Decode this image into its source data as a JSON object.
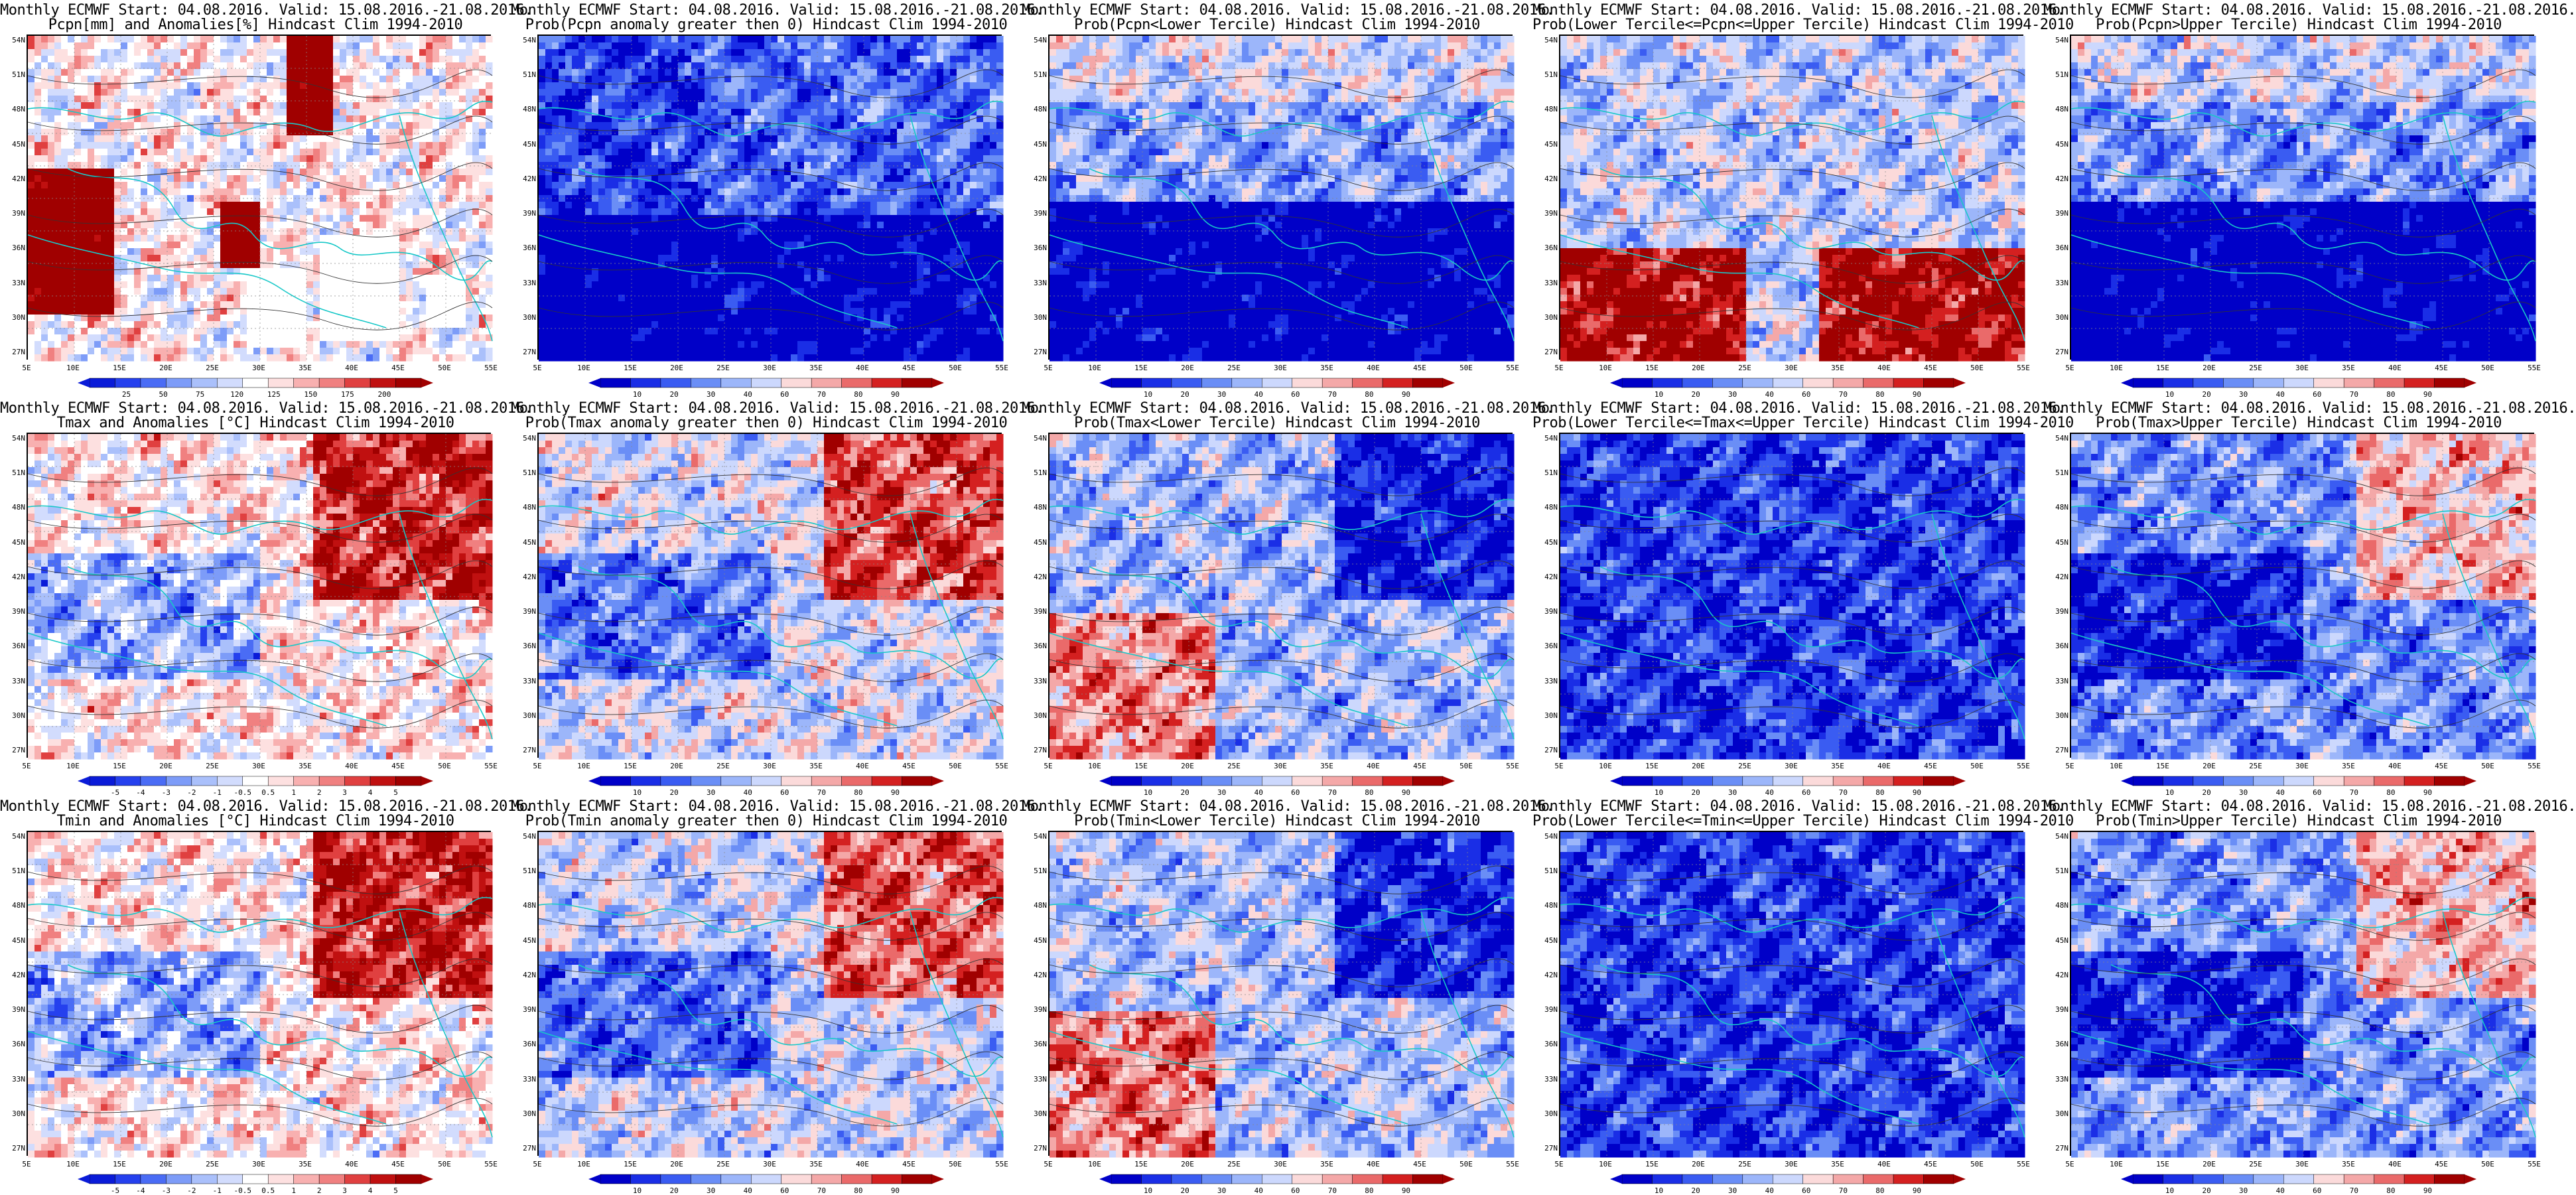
{
  "palettes": {
    "anom": [
      "#0a1bd8",
      "#2540ee",
      "#4a6cf5",
      "#7d9cf8",
      "#aac0fb",
      "#d2dcfd",
      "#ffffff",
      "#fde0e0",
      "#f8b0b0",
      "#f08080",
      "#e04040",
      "#c01010",
      "#a00000"
    ],
    "prob": [
      "#0000c8",
      "#1a2ee6",
      "#3a5cf2",
      "#6a8ef6",
      "#9cb6fa",
      "#ccd8fd",
      "#fbdada",
      "#f4a8a8",
      "#ea6a6a",
      "#d42020",
      "#a00000"
    ]
  },
  "x_ticks": [
    "5E",
    "10E",
    "15E",
    "20E",
    "25E",
    "30E",
    "35E",
    "40E",
    "45E",
    "50E",
    "55E"
  ],
  "y_ticks": [
    "54N",
    "51N",
    "48N",
    "45N",
    "42N",
    "39N",
    "36N",
    "33N",
    "30N",
    "27N"
  ],
  "panels": [
    {
      "title1": "Monthly ECMWF Start: 04.08.2016. Valid: 15.08.2016.-21.08.2016.",
      "title2": "Pcpn[mm] and Anomalies[%] Hindcast Clim 1994-2010",
      "palette": "anom",
      "colorbar": [
        "25",
        "50",
        "75",
        "120",
        "125",
        "150",
        "175",
        "200"
      ],
      "bias": 0.05,
      "style": "pcpanom",
      "seed": 11
    },
    {
      "title1": "Monthly ECMWF Start: 04.08.2016. Valid: 15.08.2016.-21.08.2016.",
      "title2": "Prob(Pcpn anomaly greater then 0) Hindcast Clim 1994-2010",
      "palette": "prob",
      "colorbar": [
        "10",
        "20",
        "30",
        "40",
        "60",
        "70",
        "80",
        "90"
      ],
      "bias": -0.55,
      "style": "south_blue",
      "seed": 12
    },
    {
      "title1": "Monthly ECMWF Start: 04.08.2016. Valid: 15.08.2016.-21.08.2016.",
      "title2": "Prob(Pcpn<Lower Tercile) Hindcast Clim 1994-2010",
      "palette": "prob",
      "colorbar": [
        "10",
        "20",
        "30",
        "40",
        "60",
        "70",
        "80",
        "90"
      ],
      "bias": -0.3,
      "style": "south_deep_blue",
      "seed": 13
    },
    {
      "title1": "Monthly ECMWF Start: 04.08.2016. Valid: 15.08.2016.-21.08.2016.",
      "title2": "Prob(Lower Tercile<=Pcpn<=Upper Tercile) Hindcast Clim 1994-2010",
      "palette": "prob",
      "colorbar": [
        "10",
        "20",
        "30",
        "40",
        "60",
        "70",
        "80",
        "90"
      ],
      "bias": -0.1,
      "style": "south_red",
      "seed": 14
    },
    {
      "title1": "Monthly ECMWF Start: 04.08.2016. Valid: 15.08.2016.-21.08.2016.",
      "title2": "Prob(Pcpn>Upper Tercile) Hindcast Clim 1994-2010",
      "palette": "prob",
      "colorbar": [
        "10",
        "20",
        "30",
        "40",
        "60",
        "70",
        "80",
        "90"
      ],
      "bias": -0.35,
      "style": "south_deep_blue",
      "seed": 15
    },
    {
      "title1": "Monthly ECMWF Start: 04.08.2016. Valid: 15.08.2016.-21.08.2016.",
      "title2": "Tmax and Anomalies [°C] Hindcast Clim 1994-2010",
      "palette": "anom",
      "colorbar": [
        "-5",
        "-4",
        "-3",
        "-2",
        "-1",
        "-0.5",
        "0.5",
        "1",
        "2",
        "3",
        "4",
        "5"
      ],
      "bias": 0.1,
      "style": "east_red",
      "seed": 21
    },
    {
      "title1": "Monthly ECMWF Start: 04.08.2016. Valid: 15.08.2016.-21.08.2016.",
      "title2": "Prob(Tmax anomaly greater then 0) Hindcast Clim 1994-2010",
      "palette": "prob",
      "colorbar": [
        "10",
        "20",
        "30",
        "40",
        "60",
        "70",
        "80",
        "90"
      ],
      "bias": 0.0,
      "style": "east_red",
      "seed": 22
    },
    {
      "title1": "Monthly ECMWF Start: 04.08.2016. Valid: 15.08.2016.-21.08.2016.",
      "title2": "Prob(Tmax<Lower Tercile) Hindcast Clim 1994-2010",
      "palette": "prob",
      "colorbar": [
        "10",
        "20",
        "30",
        "40",
        "60",
        "70",
        "80",
        "90"
      ],
      "bias": -0.2,
      "style": "mixed",
      "seed": 23
    },
    {
      "title1": "Monthly ECMWF Start: 04.08.2016. Valid: 15.08.2016.-21.08.2016.",
      "title2": "Prob(Lower Tercile<=Tmax<=Upper Tercile) Hindcast Clim 1994-2010",
      "palette": "prob",
      "colorbar": [
        "10",
        "20",
        "30",
        "40",
        "60",
        "70",
        "80",
        "90"
      ],
      "bias": -0.45,
      "style": "blue",
      "seed": 24
    },
    {
      "title1": "Monthly ECMWF Start: 04.08.2016. Valid: 15.08.2016.-21.08.2016.",
      "title2": "Prob(Tmax>Upper Tercile) Hindcast Clim 1994-2010",
      "palette": "prob",
      "colorbar": [
        "10",
        "20",
        "30",
        "40",
        "60",
        "70",
        "80",
        "90"
      ],
      "bias": -0.4,
      "style": "east_red",
      "seed": 25
    },
    {
      "title1": "Monthly ECMWF Start: 04.08.2016. Valid: 15.08.2016.-21.08.2016.",
      "title2": "Tmin and Anomalies [°C] Hindcast Clim 1994-2010",
      "palette": "anom",
      "colorbar": [
        "-5",
        "-4",
        "-3",
        "-2",
        "-1",
        "-0.5",
        "0.5",
        "1",
        "2",
        "3",
        "4",
        "5"
      ],
      "bias": 0.1,
      "style": "east_red",
      "seed": 31
    },
    {
      "title1": "Monthly ECMWF Start: 04.08.2016. Valid: 15.08.2016.-21.08.2016.",
      "title2": "Prob(Tmin anomaly greater then 0) Hindcast Clim 1994-2010",
      "palette": "prob",
      "colorbar": [
        "10",
        "20",
        "30",
        "40",
        "60",
        "70",
        "80",
        "90"
      ],
      "bias": -0.05,
      "style": "east_red",
      "seed": 32
    },
    {
      "title1": "Monthly ECMWF Start: 04.08.2016. Valid: 15.08.2016.-21.08.2016.",
      "title2": "Prob(Tmin<Lower Tercile) Hindcast Clim 1994-2010",
      "palette": "prob",
      "colorbar": [
        "10",
        "20",
        "30",
        "40",
        "60",
        "70",
        "80",
        "90"
      ],
      "bias": -0.15,
      "style": "mixed",
      "seed": 33
    },
    {
      "title1": "Monthly ECMWF Start: 04.08.2016. Valid: 15.08.2016.-21.08.2016.",
      "title2": "Prob(Lower Tercile<=Tmin<=Upper Tercile) Hindcast Clim 1994-2010",
      "palette": "prob",
      "colorbar": [
        "10",
        "20",
        "30",
        "40",
        "60",
        "70",
        "80",
        "90"
      ],
      "bias": -0.45,
      "style": "blue",
      "seed": 34
    },
    {
      "title1": "Monthly ECMWF Start: 04.08.2016. Valid: 15.08.2016.-21.08.2016.",
      "title2": "Prob(Tmin>Upper Tercile) Hindcast Clim 1994-2010",
      "palette": "prob",
      "colorbar": [
        "10",
        "20",
        "30",
        "40",
        "60",
        "70",
        "80",
        "90"
      ],
      "bias": -0.35,
      "style": "east_red",
      "seed": 35
    }
  ]
}
